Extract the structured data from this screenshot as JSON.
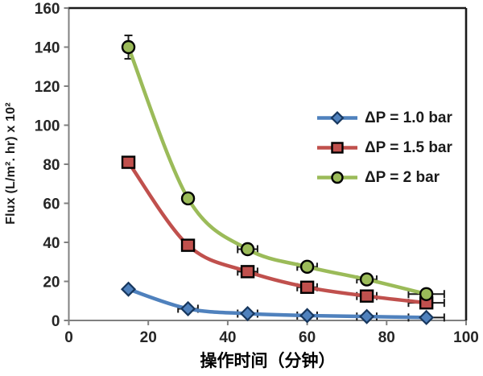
{
  "chart_data": {
    "type": "line",
    "title": "",
    "xlabel": "操作时间（分钟）",
    "ylabel": "Flux (L/m². hr) x 10²",
    "xlim": [
      0,
      100
    ],
    "ylim": [
      0,
      160
    ],
    "xticks": [
      0,
      20,
      40,
      60,
      80,
      100
    ],
    "yticks": [
      0,
      20,
      40,
      60,
      80,
      100,
      120,
      140,
      160
    ],
    "grid": false,
    "legend_position": "center-right",
    "x": [
      15,
      30,
      45,
      60,
      75,
      90
    ],
    "series": [
      {
        "name": "ΔP = 1.0 bar",
        "color": "#4F81BD",
        "marker": "diamond",
        "marker_stroke": "#17375E",
        "values": [
          16,
          6,
          3.5,
          2.5,
          2,
          1.5
        ],
        "yerr": [
          null,
          null,
          null,
          null,
          null,
          null
        ],
        "xerr": [
          null,
          2.5,
          2.5,
          2.5,
          2.5,
          4.5
        ]
      },
      {
        "name": "ΔP = 1.5 bar",
        "color": "#C0504D",
        "marker": "square",
        "marker_stroke": "#000000",
        "values": [
          81,
          38.5,
          25,
          17,
          12.5,
          9
        ],
        "yerr": [
          2.5,
          null,
          null,
          null,
          null,
          null
        ],
        "xerr": [
          null,
          null,
          2.5,
          2.5,
          2.5,
          4.5
        ]
      },
      {
        "name": "ΔP = 2 bar",
        "color": "#9BBB59",
        "marker": "circle",
        "marker_stroke": "#000000",
        "values": [
          140,
          62.5,
          36.5,
          27.5,
          21,
          13.5
        ],
        "yerr": [
          6,
          null,
          null,
          null,
          null,
          null
        ],
        "xerr": [
          null,
          null,
          2.5,
          2.5,
          2.5,
          4.5
        ]
      }
    ],
    "colors": {
      "axis_line": "#808080",
      "plot_border": "#1a1a1a",
      "tick_label": "#262626",
      "error_bar": "#1a1a1a",
      "background": "#ffffff"
    }
  }
}
